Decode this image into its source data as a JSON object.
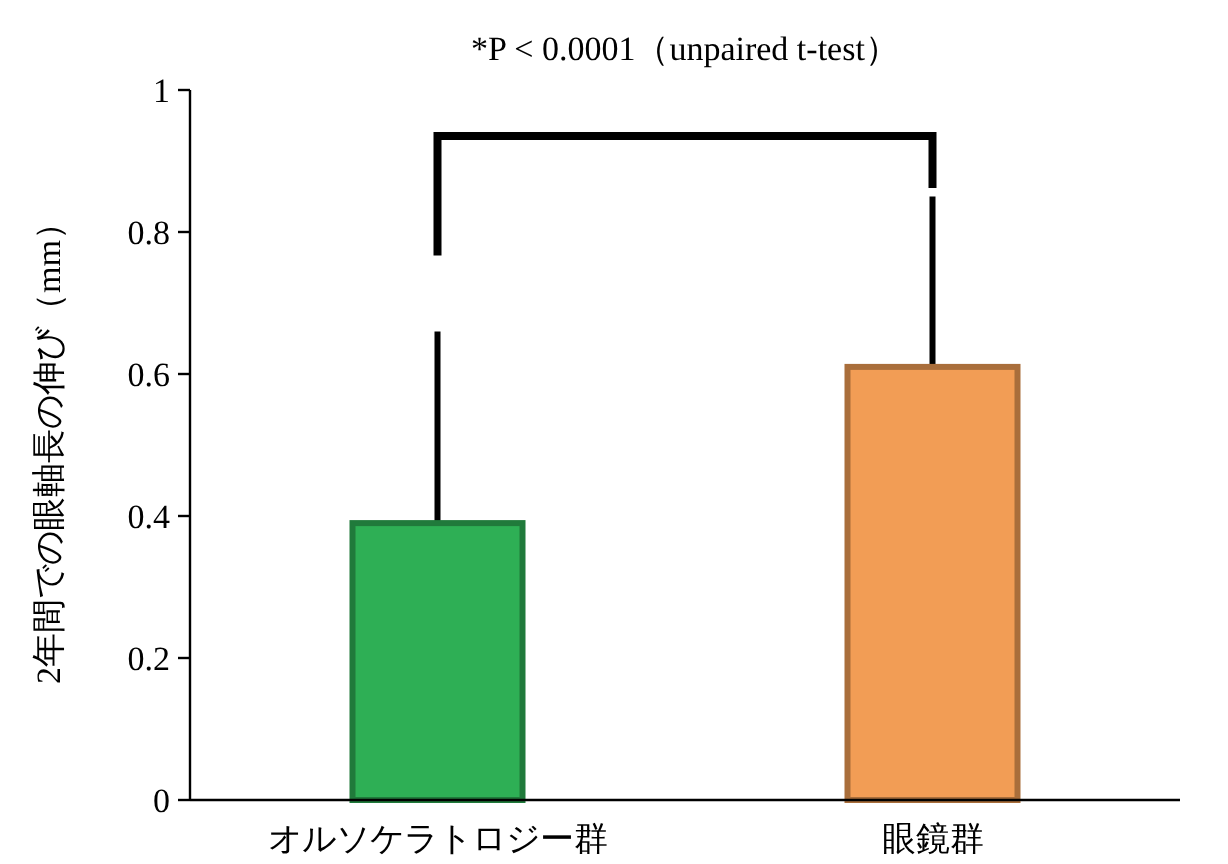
{
  "chart_data": {
    "type": "bar",
    "ylabel": "2年間での眼軸長の伸び（mm）",
    "categories": [
      "オルソケラトロジー群",
      "眼鏡群"
    ],
    "values": [
      0.39,
      0.61
    ],
    "colors": [
      "#2eaf55",
      "#f29d55"
    ],
    "errors": [
      [
        0.39,
        0.66
      ],
      [
        0.61,
        0.85
      ]
    ],
    "ylim": [
      0,
      1
    ],
    "yticks": [
      0,
      0.2,
      0.4,
      0.6,
      0.8,
      1
    ],
    "annotations": [
      "*P < 0.0001（unpaired t-test）"
    ]
  }
}
